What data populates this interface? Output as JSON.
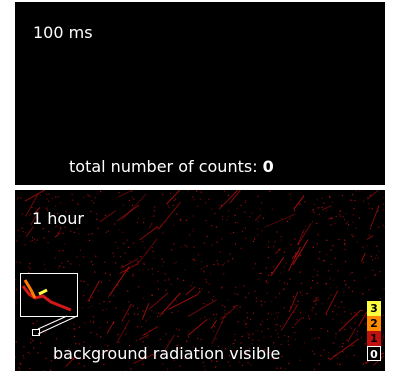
{
  "top_panel": {
    "time_label": "100 ms",
    "counts_label": "total number of counts:",
    "counts_value": "0"
  },
  "bottom_panel": {
    "time_label": "1 hour",
    "caption": "background radiation visible",
    "track_color": "#c01010",
    "inset_track_colors": [
      "#d01818",
      "#ff7a00",
      "#ffff40"
    ]
  },
  "color_scale": {
    "entries": [
      {
        "label": "3",
        "color": "#ffff40",
        "text_color": "#000000"
      },
      {
        "label": "2",
        "color": "#ff8a00",
        "text_color": "#000000"
      },
      {
        "label": "1",
        "color": "#c01010",
        "text_color": "#000000"
      },
      {
        "label": "0",
        "color": "#000000",
        "text_color": "#ffffff"
      }
    ]
  }
}
